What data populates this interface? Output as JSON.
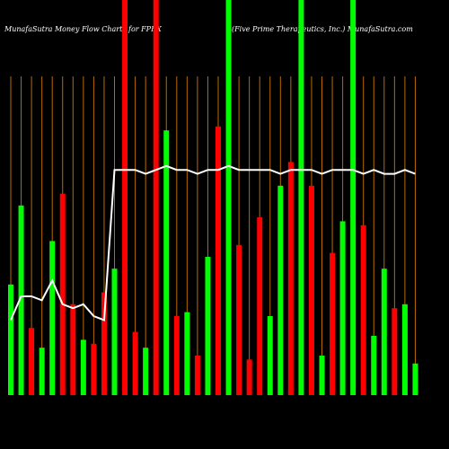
{
  "chart_data": {
    "type": "bar",
    "title": "MunafaSutra  Money Flow  Charts for FPRX",
    "subtitle": "(Five  Prime  Therapeutics,  Inc.) MunafaSutra.com",
    "ylim": [
      0,
      100
    ],
    "series": [
      {
        "name": "Money Flow",
        "type": "bar",
        "colors": [
          "#00ff00",
          "#00ff00",
          "#ff0000",
          "#00ff00",
          "#00ff00",
          "#ff0000",
          "#ff0000",
          "#00ff00",
          "#ff0000",
          "#ff0000",
          "#00ff00",
          "#ff0000",
          "#ff0000",
          "#00ff00",
          "#ff0000",
          "#00ff00",
          "#ff0000",
          "#00ff00",
          "#ff0000",
          "#00ff00",
          "#ff0000",
          "#00ff00",
          "#ff0000",
          "#ff0000",
          "#ff0000",
          "#00ff00",
          "#00ff00",
          "#ff0000",
          "#00ff00",
          "#ff0000",
          "#00ff00",
          "#ff0000",
          "#00ff00",
          "#00ff00",
          "#ff0000",
          "#00ff00",
          "#00ff00",
          "#ff0000",
          "#00ff00",
          "#00ff00"
        ],
        "values": [
          28,
          48,
          17,
          12,
          39,
          51,
          23,
          14,
          13,
          26,
          32,
          100,
          16,
          12,
          100,
          67,
          20,
          21,
          10,
          35,
          68,
          100,
          38,
          9,
          45,
          20,
          53,
          59,
          100,
          53,
          10,
          36,
          44,
          100,
          43,
          15,
          32,
          22,
          23,
          8
        ]
      },
      {
        "name": "Trend",
        "type": "line",
        "color": "#ffffff",
        "values": [
          19,
          25,
          25,
          24,
          29,
          23,
          22,
          23,
          20,
          19,
          57,
          57,
          57,
          56,
          57,
          58,
          57,
          57,
          56,
          57,
          57,
          58,
          57,
          57,
          57,
          57,
          56,
          57,
          57,
          57,
          56,
          57,
          57,
          57,
          56,
          57,
          56,
          56,
          57,
          56
        ]
      }
    ]
  }
}
